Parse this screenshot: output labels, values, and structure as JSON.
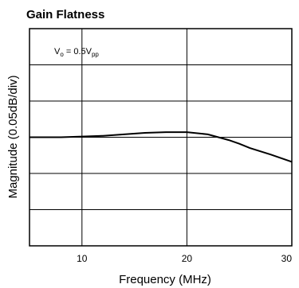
{
  "chart_data": {
    "type": "line",
    "title": "Gain Flatness",
    "xlabel": "Frequency (MHz)",
    "ylabel": "Magnitude (0.05dB/div)",
    "xlim": [
      5,
      30
    ],
    "x_ticks": [
      10,
      20,
      30
    ],
    "x_tick_labels": [
      "10",
      "20",
      "30"
    ],
    "ylim": [
      -0.15,
      0.15
    ],
    "y_divisions": 6,
    "grid": true,
    "annotation": {
      "main": "V",
      "sub1": "o",
      "mid": " = 0.5V",
      "sub2": "pp"
    },
    "series": [
      {
        "x": [
          5,
          8,
          10,
          12,
          14,
          16,
          18,
          20,
          22,
          23,
          24,
          25,
          26,
          28,
          30
        ],
        "y": [
          0.0,
          0.0,
          0.001,
          0.002,
          0.004,
          0.006,
          0.007,
          0.007,
          0.004,
          0.0,
          -0.004,
          -0.009,
          -0.015,
          -0.024,
          -0.034
        ]
      }
    ]
  }
}
